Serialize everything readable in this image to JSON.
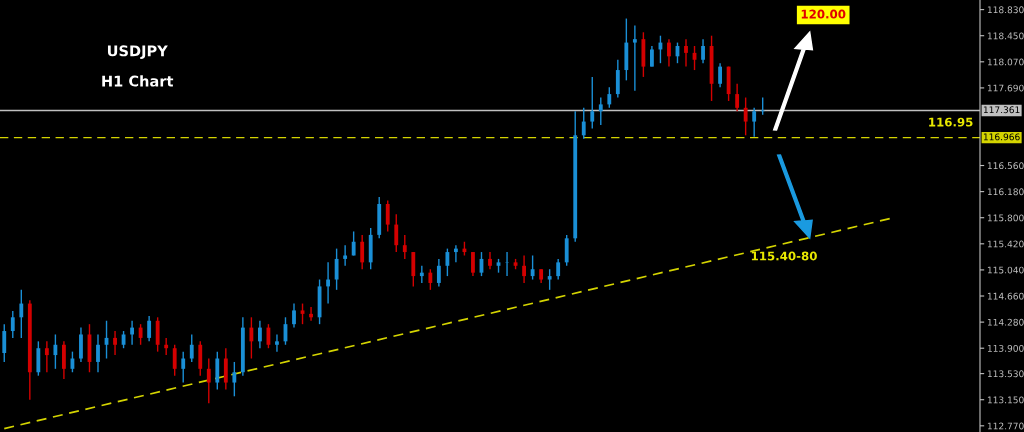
{
  "chart_data": {
    "type": "candlestick",
    "title": "USDJPY",
    "subtitle": "H1 Chart",
    "categories": [
      null,
      null,
      null,
      null,
      null,
      null,
      null,
      null,
      null,
      null,
      null,
      null,
      null,
      null,
      null,
      null,
      null,
      null,
      null,
      null,
      null,
      null,
      null,
      null,
      null,
      null,
      null,
      null,
      null,
      null,
      null,
      null,
      null,
      null,
      null,
      null,
      null,
      null,
      null,
      null,
      null,
      null,
      null,
      null,
      null,
      null,
      null,
      null,
      null,
      null,
      null,
      null,
      null,
      null,
      null,
      null,
      null,
      null,
      null,
      null,
      null,
      null,
      null,
      null,
      null,
      null,
      null,
      null,
      null,
      null,
      null,
      null,
      null,
      null,
      null,
      null,
      null,
      null,
      null,
      null,
      null,
      null,
      null,
      null,
      null,
      null,
      null,
      null,
      null,
      null,
      null,
      null,
      null,
      null,
      null,
      null,
      null,
      null,
      null,
      null,
      null,
      null,
      null,
      null,
      null,
      null,
      null,
      null,
      null,
      null,
      null,
      null,
      null,
      null,
      null
    ],
    "ohlc": [
      [
        113.83,
        114.25,
        113.7,
        114.15
      ],
      [
        114.15,
        114.44,
        114.05,
        114.35
      ],
      [
        114.35,
        114.75,
        114.05,
        114.55
      ],
      [
        114.55,
        114.6,
        113.15,
        113.55
      ],
      [
        113.55,
        114.0,
        113.5,
        113.9
      ],
      [
        113.9,
        114.0,
        113.55,
        113.8
      ],
      [
        113.8,
        114.1,
        113.6,
        113.95
      ],
      [
        113.95,
        114.0,
        113.45,
        113.6
      ],
      [
        113.6,
        113.85,
        113.55,
        113.75
      ],
      [
        113.75,
        114.2,
        113.7,
        114.1
      ],
      [
        114.1,
        114.25,
        113.55,
        113.7
      ],
      [
        113.7,
        114.1,
        113.55,
        113.95
      ],
      [
        113.95,
        114.3,
        113.75,
        114.05
      ],
      [
        114.05,
        114.15,
        113.8,
        113.95
      ],
      [
        113.95,
        114.15,
        113.9,
        114.1
      ],
      [
        114.1,
        114.3,
        113.95,
        114.2
      ],
      [
        114.2,
        114.25,
        113.95,
        114.05
      ],
      [
        114.05,
        114.37,
        114.0,
        114.3
      ],
      [
        114.3,
        114.35,
        113.85,
        113.95
      ],
      [
        113.95,
        114.05,
        113.8,
        113.9
      ],
      [
        113.9,
        113.95,
        113.5,
        113.6
      ],
      [
        113.6,
        113.85,
        113.4,
        113.75
      ],
      [
        113.75,
        114.1,
        113.7,
        113.95
      ],
      [
        113.95,
        114.0,
        113.5,
        113.6
      ],
      [
        113.6,
        113.75,
        113.1,
        113.4
      ],
      [
        113.4,
        113.85,
        113.3,
        113.75
      ],
      [
        113.75,
        113.9,
        113.3,
        113.4
      ],
      [
        113.4,
        113.7,
        113.2,
        113.55
      ],
      [
        113.55,
        114.35,
        113.5,
        114.2
      ],
      [
        114.2,
        114.35,
        113.75,
        114.0
      ],
      [
        114.0,
        114.3,
        113.9,
        114.2
      ],
      [
        114.2,
        114.25,
        113.9,
        113.95
      ],
      [
        113.95,
        114.1,
        113.85,
        114.0
      ],
      [
        114.0,
        114.35,
        113.95,
        114.25
      ],
      [
        114.25,
        114.55,
        114.2,
        114.45
      ],
      [
        114.45,
        114.55,
        114.25,
        114.4
      ],
      [
        114.4,
        114.5,
        114.3,
        114.35
      ],
      [
        114.35,
        114.9,
        114.25,
        114.8
      ],
      [
        114.8,
        115.15,
        114.55,
        114.9
      ],
      [
        114.9,
        115.35,
        114.75,
        115.2
      ],
      [
        115.2,
        115.4,
        115.1,
        115.25
      ],
      [
        115.25,
        115.6,
        115.25,
        115.45
      ],
      [
        115.45,
        115.55,
        115.05,
        115.15
      ],
      [
        115.15,
        115.65,
        115.05,
        115.55
      ],
      [
        115.55,
        116.1,
        115.5,
        116.0
      ],
      [
        116.0,
        116.05,
        115.6,
        115.7
      ],
      [
        115.7,
        115.85,
        115.3,
        115.4
      ],
      [
        115.4,
        115.55,
        115.2,
        115.3
      ],
      [
        115.3,
        115.3,
        114.8,
        114.95
      ],
      [
        114.95,
        115.1,
        114.85,
        115.0
      ],
      [
        115.0,
        115.05,
        114.75,
        114.85
      ],
      [
        114.85,
        115.2,
        114.8,
        115.1
      ],
      [
        115.1,
        115.35,
        114.95,
        115.3
      ],
      [
        115.3,
        115.4,
        115.15,
        115.35
      ],
      [
        115.35,
        115.45,
        115.25,
        115.3
      ],
      [
        115.3,
        115.3,
        114.95,
        115.0
      ],
      [
        115.0,
        115.3,
        114.95,
        115.2
      ],
      [
        115.2,
        115.3,
        115.05,
        115.1
      ],
      [
        115.1,
        115.2,
        115.0,
        115.15
      ],
      [
        115.15,
        115.3,
        114.95,
        115.15
      ],
      [
        115.15,
        115.2,
        115.05,
        115.1
      ],
      [
        115.1,
        115.25,
        114.85,
        114.95
      ],
      [
        114.95,
        115.25,
        114.9,
        115.05
      ],
      [
        115.05,
        115.05,
        114.85,
        114.9
      ],
      [
        114.9,
        115.05,
        114.75,
        114.95
      ],
      [
        114.95,
        115.2,
        114.9,
        115.15
      ],
      [
        115.15,
        115.55,
        115.1,
        115.5
      ],
      [
        115.5,
        117.35,
        115.45,
        117.0
      ],
      [
        117.0,
        117.4,
        116.95,
        117.2
      ],
      [
        117.2,
        117.85,
        117.1,
        117.35
      ],
      [
        117.35,
        117.55,
        117.15,
        117.45
      ],
      [
        117.45,
        117.7,
        117.4,
        117.6
      ],
      [
        117.6,
        118.1,
        117.55,
        117.95
      ],
      [
        117.95,
        118.7,
        117.8,
        118.35
      ],
      [
        118.35,
        118.6,
        117.65,
        118.4
      ],
      [
        118.4,
        118.5,
        117.85,
        118.0
      ],
      [
        118.0,
        118.3,
        118.0,
        118.25
      ],
      [
        118.25,
        118.45,
        118.05,
        118.35
      ],
      [
        118.35,
        118.4,
        118.0,
        118.15
      ],
      [
        118.15,
        118.35,
        118.05,
        118.3
      ],
      [
        118.3,
        118.4,
        118.0,
        118.2
      ],
      [
        118.2,
        118.3,
        117.95,
        118.1
      ],
      [
        118.1,
        118.4,
        118.05,
        118.3
      ],
      [
        118.3,
        118.45,
        117.5,
        117.75
      ],
      [
        117.75,
        118.05,
        117.7,
        118.0
      ],
      [
        118.0,
        118.0,
        117.5,
        117.6
      ],
      [
        117.6,
        117.75,
        117.35,
        117.4
      ],
      [
        117.4,
        117.55,
        117.0,
        117.2
      ],
      [
        117.2,
        117.4,
        116.98,
        117.35
      ],
      [
        117.35,
        117.55,
        117.3,
        117.36
      ],
      null,
      null,
      null,
      null,
      null,
      null,
      null,
      null,
      null,
      null,
      null,
      null,
      null,
      null,
      null,
      null,
      null,
      null,
      null,
      null,
      null,
      null,
      null,
      null,
      null
    ],
    "series": [
      {
        "type": "line",
        "color": "#d4d400",
        "line_style": "dashed",
        "values": [
          112.73,
          null,
          null,
          null,
          null,
          null,
          null,
          null,
          null,
          null,
          null,
          null,
          null,
          null,
          null,
          null,
          null,
          null,
          null,
          null,
          null,
          null,
          null,
          null,
          null,
          null,
          null,
          null,
          null,
          null,
          null,
          null,
          null,
          null,
          null,
          null,
          null,
          null,
          null,
          null,
          null,
          null,
          null,
          null,
          null,
          null,
          null,
          null,
          null,
          null,
          null,
          null,
          null,
          null,
          null,
          null,
          null,
          null,
          null,
          null,
          null,
          null,
          null,
          null,
          null,
          null,
          null,
          null,
          null,
          null,
          null,
          null,
          null,
          null,
          null,
          null,
          null,
          null,
          null,
          null,
          null,
          null,
          null,
          null,
          null,
          null,
          null,
          null,
          null,
          null,
          null,
          null,
          null,
          null,
          null,
          null,
          null,
          null,
          null,
          null,
          null,
          null,
          null,
          null,
          115.79,
          null,
          null,
          null,
          null,
          null,
          null,
          null,
          null,
          null,
          null
        ]
      }
    ],
    "ylim": [
      112.68,
      118.97
    ],
    "yticks": [
      {
        "value": 118.83,
        "label": "118.830"
      },
      {
        "value": 118.45,
        "label": "118.450"
      },
      {
        "value": 118.07,
        "label": "118.070"
      },
      {
        "value": 117.69,
        "label": "117.690"
      },
      {
        "value": 116.56,
        "label": "116.560"
      },
      {
        "value": 116.18,
        "label": "116.180"
      },
      {
        "value": 115.8,
        "label": "115.800"
      },
      {
        "value": 115.42,
        "label": "115.420"
      },
      {
        "value": 115.04,
        "label": "115.040"
      },
      {
        "value": 114.66,
        "label": "114.660"
      },
      {
        "value": 114.28,
        "label": "114.280"
      },
      {
        "value": 113.9,
        "label": "113.900"
      },
      {
        "value": 113.53,
        "label": "113.530"
      },
      {
        "value": 113.15,
        "label": "113.150"
      },
      {
        "value": 112.77,
        "label": "112.770"
      }
    ],
    "ref_lines": [
      {
        "axis": "y",
        "value": 117.361,
        "label": "117.361",
        "color": "#c0c0c0",
        "line_style": "solid"
      },
      {
        "axis": "y",
        "value": 116.966,
        "label": "116.966",
        "color": "#d4d400",
        "line_style": "dashed"
      }
    ],
    "annotations": [
      "116.95",
      "120.00",
      "115.40-80"
    ],
    "tick_labels": "y",
    "grid": false
  }
}
